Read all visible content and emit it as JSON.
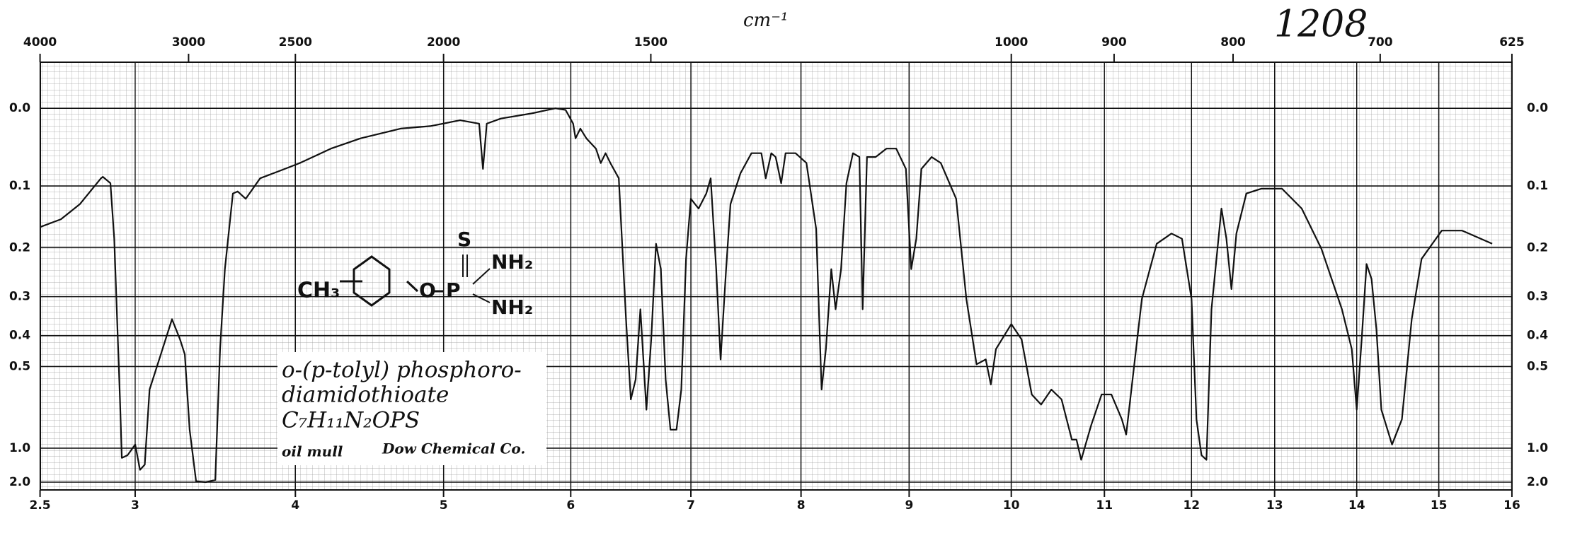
{
  "chart_data": {
    "type": "line",
    "yscale": "absorbance",
    "grid": true,
    "color": "#111111",
    "annotations": {
      "wavenumber_unit": "cm⁻¹",
      "spectrum_number": "1208",
      "compound_name": [
        "o-(p-tolyl) phosphoro-",
        "diamidothioate"
      ],
      "formula": "C₇H₁₁N₂OPS",
      "sample": "oil mull",
      "source": "Dow Chemical Co.",
      "structure": [
        "CH₃",
        "O",
        "P",
        "S",
        "NH₂",
        "NH₂"
      ]
    },
    "xlim": [
      2.5,
      16
    ],
    "xticks": [
      2.5,
      3,
      4,
      5,
      6,
      7,
      8,
      9,
      10,
      11,
      12,
      13,
      14,
      15,
      16
    ],
    "x2ticks": [
      4000,
      3000,
      2500,
      2000,
      1500,
      1000,
      900,
      800,
      700,
      625
    ],
    "ylim": [
      -0.05,
      2.0
    ],
    "yticks": [
      {
        "value": 0,
        "label": "0.0"
      },
      0.1,
      0.2,
      0.3,
      0.4,
      0.5,
      {
        "value": 1,
        "label": "1.0"
      },
      {
        "value": 2,
        "label": "2.0"
      }
    ],
    "x": [
      2.5,
      2.61,
      2.71,
      2.82,
      2.83,
      2.87,
      2.89,
      2.92,
      2.93,
      2.96,
      3.0,
      3.03,
      3.06,
      3.09,
      3.16,
      3.23,
      3.28,
      3.31,
      3.34,
      3.38,
      3.44,
      3.5,
      3.53,
      3.56,
      3.61,
      3.64,
      3.69,
      3.78,
      3.91,
      4.03,
      4.24,
      4.44,
      4.71,
      4.91,
      5.13,
      5.28,
      5.31,
      5.34,
      5.45,
      5.69,
      5.88,
      5.96,
      6.02,
      6.04,
      6.08,
      6.13,
      6.21,
      6.25,
      6.29,
      6.33,
      6.4,
      6.46,
      6.5,
      6.54,
      6.58,
      6.63,
      6.67,
      6.71,
      6.75,
      6.79,
      6.83,
      6.88,
      6.92,
      6.96,
      7.0,
      7.07,
      7.14,
      7.18,
      7.23,
      7.27,
      7.32,
      7.36,
      7.45,
      7.55,
      7.64,
      7.68,
      7.73,
      7.77,
      7.82,
      7.86,
      7.95,
      8.05,
      8.14,
      8.19,
      8.23,
      8.28,
      8.32,
      8.37,
      8.42,
      8.48,
      8.54,
      8.57,
      8.61,
      8.69,
      8.79,
      8.88,
      8.97,
      9.02,
      9.07,
      9.12,
      9.22,
      9.31,
      9.46,
      9.56,
      9.66,
      9.75,
      9.8,
      9.85,
      10.0,
      10.11,
      10.22,
      10.32,
      10.43,
      10.54,
      10.65,
      10.7,
      10.75,
      10.86,
      10.97,
      11.08,
      11.2,
      11.25,
      11.43,
      11.6,
      11.77,
      11.89,
      12.0,
      12.06,
      12.12,
      12.18,
      12.24,
      12.36,
      12.42,
      12.48,
      12.54,
      12.66,
      12.84,
      13.09,
      13.33,
      13.57,
      13.82,
      13.94,
      14.0,
      14.06,
      14.12,
      14.18,
      14.24,
      14.3,
      14.43,
      14.55,
      14.67,
      14.79,
      15.04,
      15.32,
      15.73
    ],
    "values": [
      0.164,
      0.151,
      0.127,
      0.089,
      0.087,
      0.096,
      0.184,
      0.64,
      1.13,
      1.09,
      0.96,
      1.37,
      1.25,
      0.593,
      0.458,
      0.355,
      0.411,
      0.458,
      0.827,
      1.9,
      2.0,
      1.8,
      0.441,
      0.241,
      0.111,
      0.108,
      0.119,
      0.089,
      0.078,
      0.068,
      0.049,
      0.036,
      0.024,
      0.021,
      0.014,
      0.018,
      0.076,
      0.018,
      0.012,
      0.006,
      0,
      0.002,
      0.018,
      0.036,
      0.024,
      0.036,
      0.049,
      0.068,
      0.055,
      0.068,
      0.089,
      0.355,
      0.64,
      0.55,
      0.33,
      0.695,
      0.411,
      0.193,
      0.241,
      0.55,
      0.827,
      0.827,
      0.593,
      0.221,
      0.119,
      0.134,
      0.111,
      0.089,
      0.241,
      0.475,
      0.241,
      0.127,
      0.082,
      0.055,
      0.055,
      0.089,
      0.055,
      0.06,
      0.096,
      0.055,
      0.055,
      0.068,
      0.167,
      0.593,
      0.441,
      0.241,
      0.33,
      0.241,
      0.096,
      0.055,
      0.06,
      0.33,
      0.06,
      0.06,
      0.049,
      0.049,
      0.076,
      0.241,
      0.184,
      0.076,
      0.06,
      0.068,
      0.119,
      0.305,
      0.492,
      0.475,
      0.571,
      0.441,
      0.368,
      0.411,
      0.616,
      0.667,
      0.593,
      0.64,
      0.912,
      0.912,
      1.16,
      0.79,
      0.616,
      0.616,
      0.754,
      0.866,
      0.305,
      0.193,
      0.175,
      0.184,
      0.305,
      0.754,
      1.09,
      1.16,
      0.33,
      0.134,
      0.184,
      0.283,
      0.175,
      0.111,
      0.104,
      0.104,
      0.134,
      0.202,
      0.33,
      0.441,
      0.695,
      0.411,
      0.231,
      0.261,
      0.382,
      0.695,
      0.96,
      0.754,
      0.355,
      0.221,
      0.17,
      0.17,
      0.193
    ]
  }
}
